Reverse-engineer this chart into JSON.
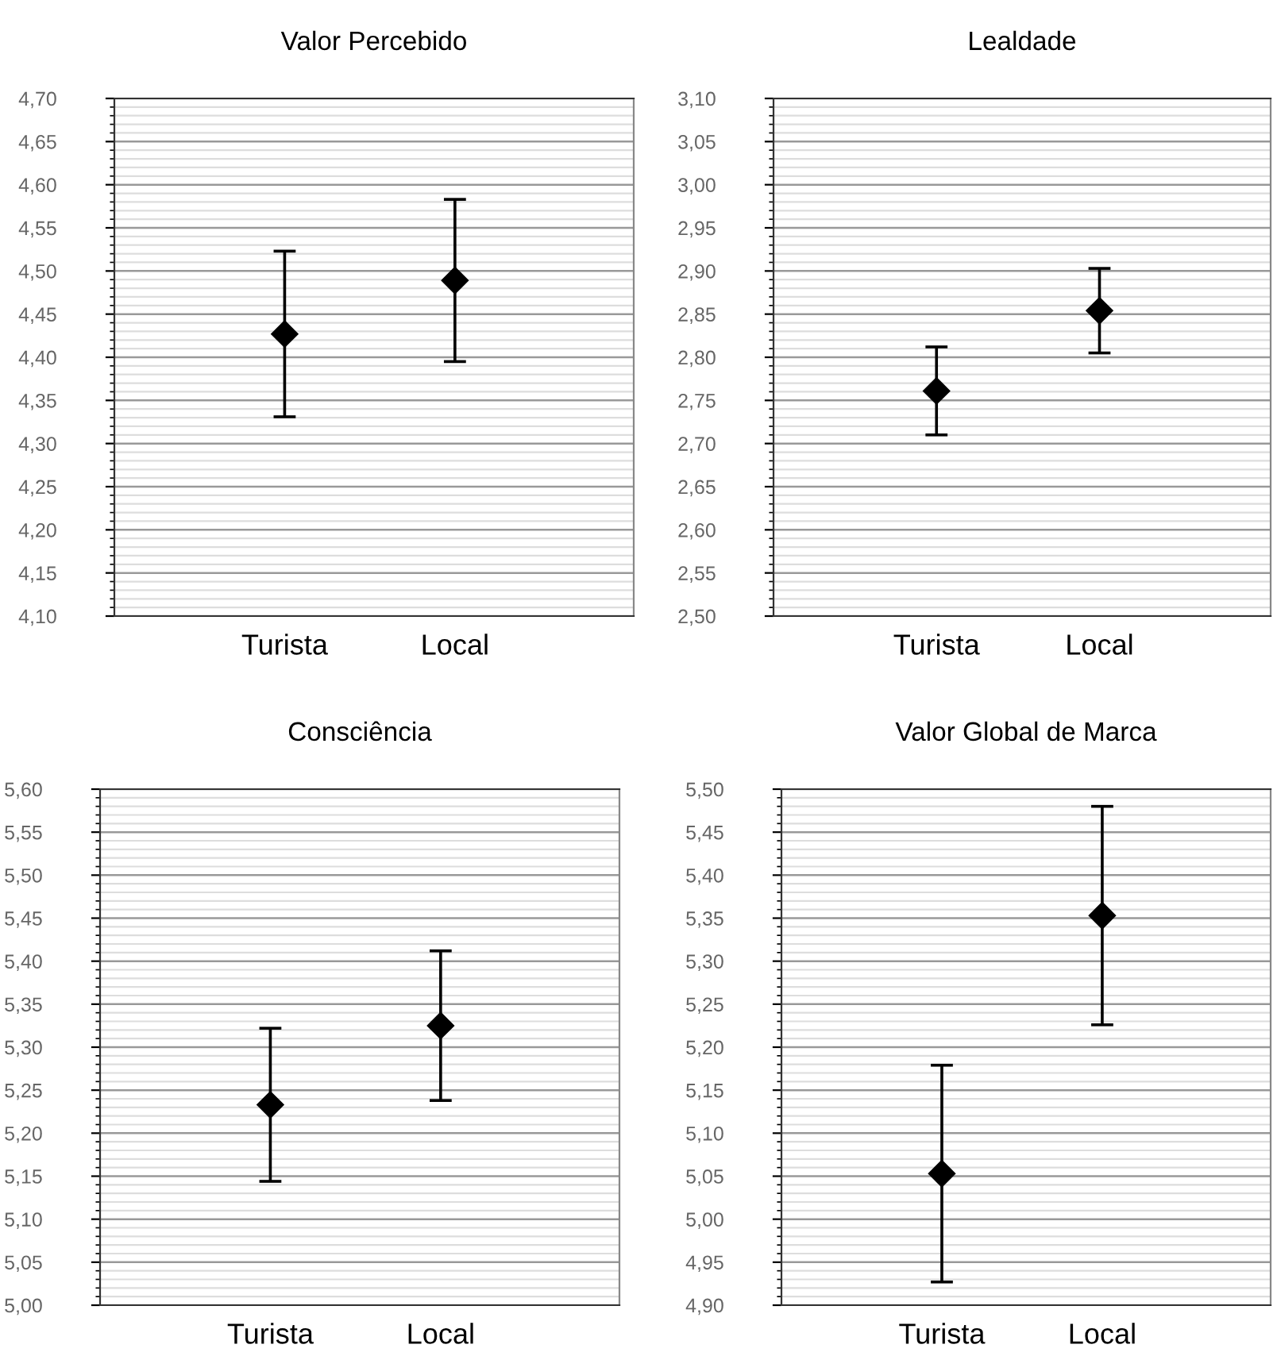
{
  "chart_data": [
    {
      "type": "scatter",
      "title": "Valor Percebido",
      "categories": [
        "Turista",
        "Local"
      ],
      "marker": "diamond",
      "grid": "y",
      "series": [
        {
          "color": "#000000",
          "values": [
            4.427,
            4.489
          ],
          "errors": [
            0.096,
            0.094
          ]
        }
      ],
      "ylim": [
        4.1,
        4.7
      ],
      "yticks": [
        {
          "value": 4.1,
          "label": "4,10"
        },
        {
          "value": 4.15,
          "label": "4,15"
        },
        {
          "value": 4.2,
          "label": "4,20"
        },
        {
          "value": 4.25,
          "label": "4,25"
        },
        {
          "value": 4.3,
          "label": "4,30"
        },
        {
          "value": 4.35,
          "label": "4,35"
        },
        {
          "value": 4.4,
          "label": "4,40"
        },
        {
          "value": 4.45,
          "label": "4,45"
        },
        {
          "value": 4.5,
          "label": "4,50"
        },
        {
          "value": 4.55,
          "label": "4,55"
        },
        {
          "value": 4.6,
          "label": "4,60"
        },
        {
          "value": 4.65,
          "label": "4,65"
        },
        {
          "value": 4.7,
          "label": "4,70"
        }
      ]
    },
    {
      "type": "scatter",
      "title": "Lealdade",
      "categories": [
        "Turista",
        "Local"
      ],
      "marker": "diamond",
      "grid": "y",
      "series": [
        {
          "color": "#000000",
          "values": [
            2.761,
            2.854
          ],
          "errors": [
            0.051,
            0.049
          ]
        }
      ],
      "ylim": [
        2.5,
        3.1
      ],
      "yticks": [
        {
          "value": 2.5,
          "label": "2,50"
        },
        {
          "value": 2.55,
          "label": "2,55"
        },
        {
          "value": 2.6,
          "label": "2,60"
        },
        {
          "value": 2.65,
          "label": "2,65"
        },
        {
          "value": 2.7,
          "label": "2,70"
        },
        {
          "value": 2.75,
          "label": "2,75"
        },
        {
          "value": 2.8,
          "label": "2,80"
        },
        {
          "value": 2.85,
          "label": "2,85"
        },
        {
          "value": 2.9,
          "label": "2,90"
        },
        {
          "value": 2.95,
          "label": "2,95"
        },
        {
          "value": 3.0,
          "label": "3,00"
        },
        {
          "value": 3.05,
          "label": "3,05"
        },
        {
          "value": 3.1,
          "label": "3,10"
        }
      ]
    },
    {
      "type": "scatter",
      "title": "Consciência",
      "categories": [
        "Turista",
        "Local"
      ],
      "marker": "diamond",
      "grid": "y",
      "series": [
        {
          "color": "#000000",
          "values": [
            5.233,
            5.325
          ],
          "errors": [
            0.089,
            0.087
          ]
        }
      ],
      "ylim": [
        5.0,
        5.6
      ],
      "yticks": [
        {
          "value": 5.0,
          "label": "5,00"
        },
        {
          "value": 5.05,
          "label": "5,05"
        },
        {
          "value": 5.1,
          "label": "5,10"
        },
        {
          "value": 5.15,
          "label": "5,15"
        },
        {
          "value": 5.2,
          "label": "5,20"
        },
        {
          "value": 5.25,
          "label": "5,25"
        },
        {
          "value": 5.3,
          "label": "5,30"
        },
        {
          "value": 5.35,
          "label": "5,35"
        },
        {
          "value": 5.4,
          "label": "5,40"
        },
        {
          "value": 5.45,
          "label": "5,45"
        },
        {
          "value": 5.5,
          "label": "5,50"
        },
        {
          "value": 5.55,
          "label": "5,55"
        },
        {
          "value": 5.6,
          "label": "5,60"
        }
      ]
    },
    {
      "type": "scatter",
      "title": "Valor Global de Marca",
      "categories": [
        "Turista",
        "Local"
      ],
      "marker": "diamond",
      "grid": "y",
      "series": [
        {
          "color": "#000000",
          "values": [
            5.053,
            5.353
          ],
          "errors": [
            0.126,
            0.127
          ]
        }
      ],
      "ylim": [
        4.9,
        5.5
      ],
      "yticks": [
        {
          "value": 4.9,
          "label": "4,90"
        },
        {
          "value": 4.95,
          "label": "4,95"
        },
        {
          "value": 5.0,
          "label": "5,00"
        },
        {
          "value": 5.05,
          "label": "5,05"
        },
        {
          "value": 5.1,
          "label": "5,10"
        },
        {
          "value": 5.15,
          "label": "5,15"
        },
        {
          "value": 5.2,
          "label": "5,20"
        },
        {
          "value": 5.25,
          "label": "5,25"
        },
        {
          "value": 5.3,
          "label": "5,30"
        },
        {
          "value": 5.35,
          "label": "5,35"
        },
        {
          "value": 5.4,
          "label": "5,40"
        },
        {
          "value": 5.45,
          "label": "5,45"
        },
        {
          "value": 5.5,
          "label": "5,50"
        }
      ]
    }
  ]
}
